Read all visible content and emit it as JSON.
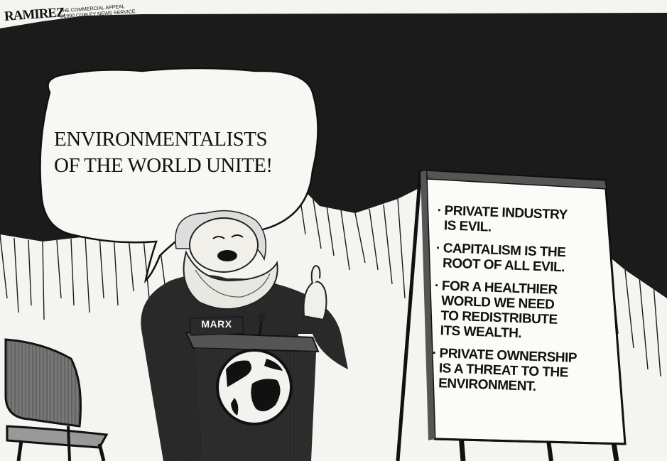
{
  "cartoon": {
    "artist_signature": "RAMIREZ",
    "credit_lines": [
      "THE COMMERCIAL APPEAL",
      "©1990 COPLEY NEWS SERVICE"
    ],
    "speech_bubble_lines": [
      "ENVIRONMENTALISTS",
      "OF THE WORLD UNITE!"
    ],
    "podium_nameplate": "MARX",
    "flipboard_items": [
      {
        "bullet": "·",
        "text": "PRIVATE INDUSTRY\nIS EVIL."
      },
      {
        "bullet": "·",
        "text": "CAPITALISM IS THE\nROOT OF ALL EVIL."
      },
      {
        "bullet": "·",
        "text": "FOR A HEALTHIER\nWORLD WE NEED\nTO REDISTRIBUTE\nITS WEALTH."
      },
      {
        "bullet": "·",
        "text": "PRIVATE OWNERSHIP\nIS A THREAT TO THE\nENVIRONMENT."
      }
    ]
  },
  "colors": {
    "ink": "#111111",
    "paper": "#f4f4f1",
    "curtain": "#1b1b1b"
  }
}
